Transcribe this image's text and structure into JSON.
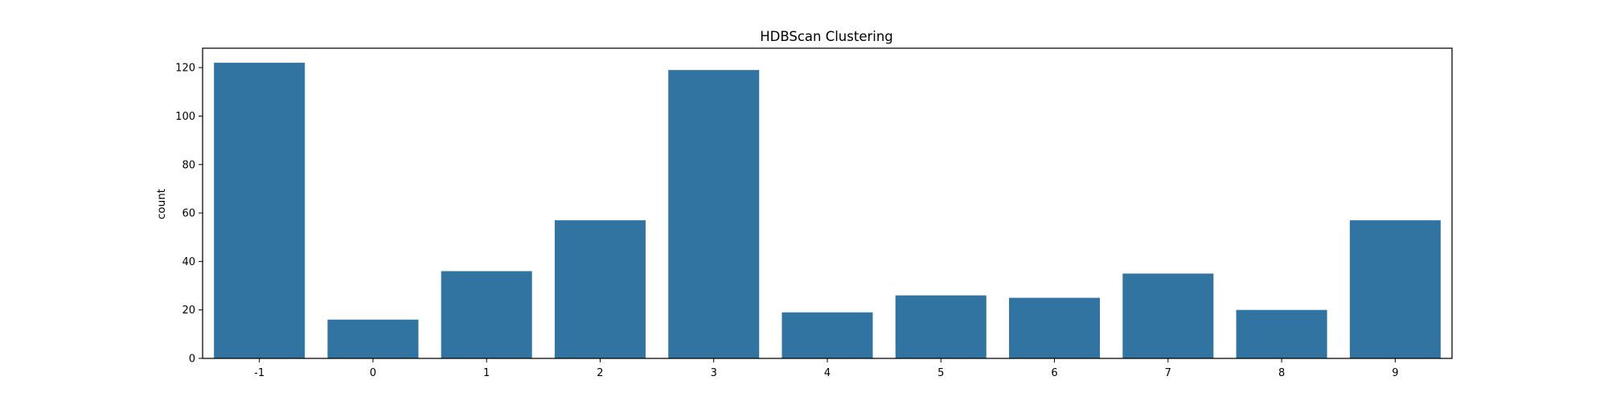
{
  "chart_data": {
    "type": "bar",
    "title": "HDBScan Clustering",
    "xlabel": "",
    "ylabel": "count",
    "categories": [
      "-1",
      "0",
      "1",
      "2",
      "3",
      "4",
      "5",
      "6",
      "7",
      "8",
      "9"
    ],
    "values": [
      122,
      16,
      36,
      57,
      119,
      19,
      26,
      25,
      35,
      20,
      57
    ],
    "ylim": [
      0,
      128
    ],
    "yticks": [
      0,
      20,
      40,
      60,
      80,
      100,
      120
    ],
    "grid": false,
    "bar_color": "#3274a1"
  }
}
